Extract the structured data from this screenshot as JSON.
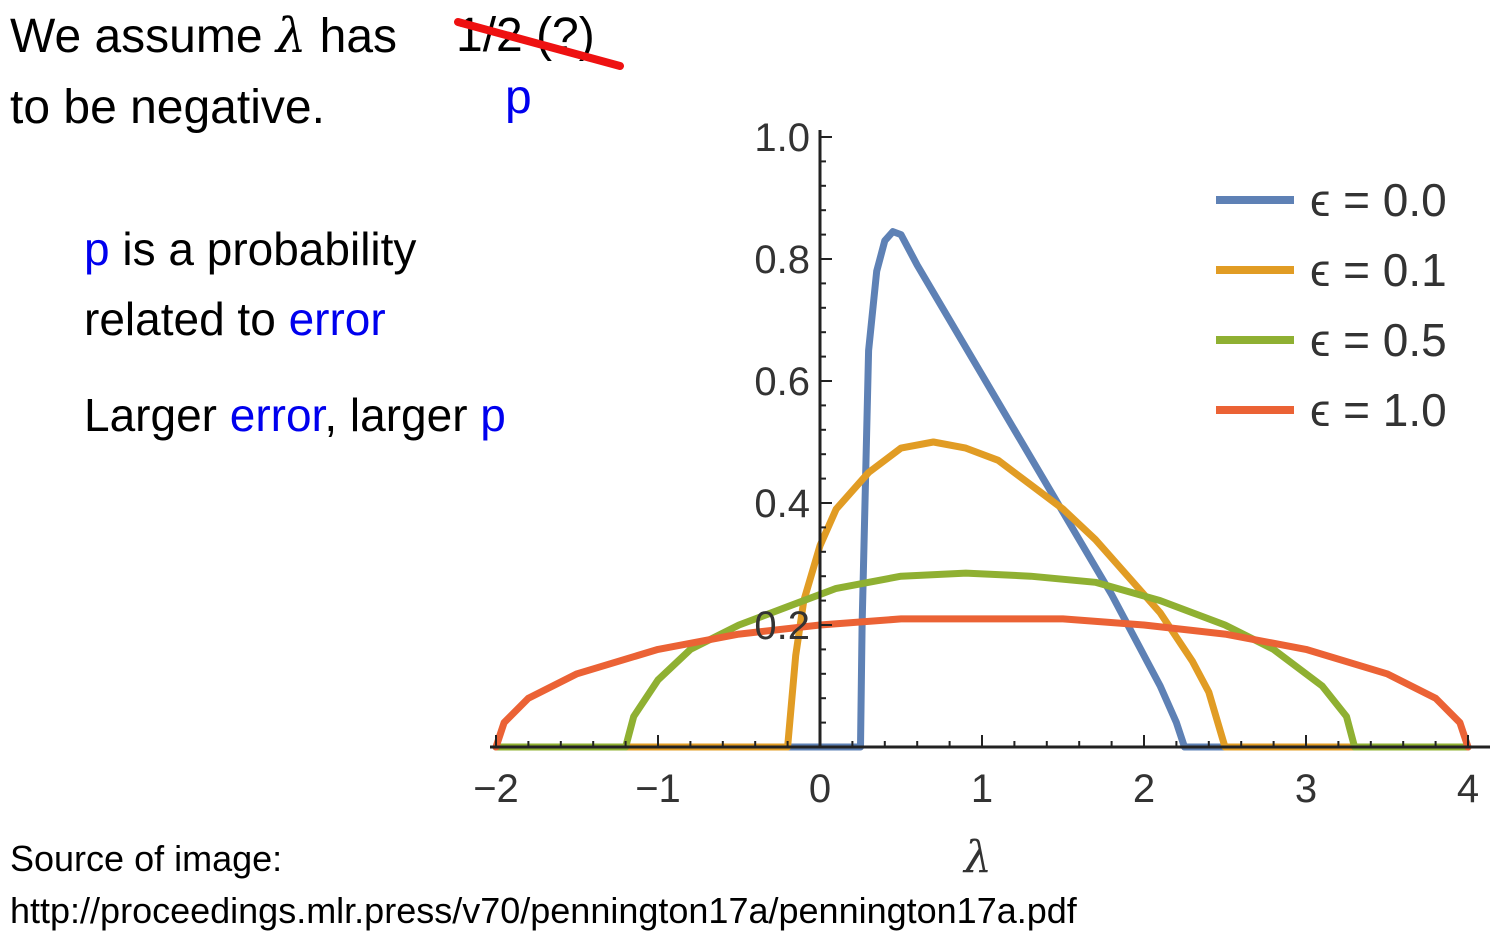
{
  "slide": {
    "line1_pre": "We assume ",
    "line1_lambda": "λ",
    "line1_post": " has ",
    "struck_text": "1/2 (?)",
    "replacement": "p",
    "line2": "to be negative.",
    "p_def_p": "p",
    "p_def_rest": " is a probability",
    "p_def_line2_pre": "related to ",
    "p_def_line2_error": "error",
    "larger_pre": "Larger ",
    "larger_error": "error",
    "larger_mid": ", larger ",
    "larger_p": "p",
    "source_label": "Source of image:",
    "source_url": "http://proceedings.mlr.press/v70/pennington17a/pennington17a.pdf"
  },
  "colors": {
    "strike": "#ee1111",
    "blue_text": "#0000ee",
    "axis": "#222222"
  },
  "chart_data": {
    "type": "line",
    "xlabel": "λ",
    "ylabel": "",
    "xlim": [
      -2,
      4
    ],
    "ylim": [
      0,
      1.0
    ],
    "x_ticks": [
      -2,
      -1,
      0,
      1,
      2,
      3,
      4
    ],
    "x_tick_labels": [
      "−2",
      "−1",
      "0",
      "1",
      "2",
      "3",
      "4"
    ],
    "y_ticks": [
      0.2,
      0.4,
      0.6,
      0.8,
      1.0
    ],
    "y_tick_labels": [
      "0.2",
      "0.4",
      "0.6",
      "0.8",
      "1.0"
    ],
    "legend_position": "top-right",
    "series": [
      {
        "name": "ϵ = 0.0",
        "color": "#5e81b5",
        "x": [
          -2,
          0.25,
          0.26,
          0.3,
          0.35,
          0.4,
          0.45,
          0.5,
          0.6,
          0.8,
          1.0,
          1.2,
          1.4,
          1.6,
          1.8,
          2.0,
          2.1,
          2.2,
          2.25,
          4
        ],
        "y": [
          0,
          0,
          0.2,
          0.65,
          0.78,
          0.83,
          0.845,
          0.84,
          0.79,
          0.7,
          0.61,
          0.52,
          0.43,
          0.34,
          0.25,
          0.15,
          0.1,
          0.04,
          0,
          0
        ]
      },
      {
        "name": "ϵ = 0.1",
        "color": "#e19c24",
        "x": [
          -2,
          -0.2,
          -0.15,
          -0.1,
          0,
          0.1,
          0.3,
          0.5,
          0.7,
          0.9,
          1.1,
          1.3,
          1.5,
          1.7,
          1.9,
          2.1,
          2.3,
          2.4,
          2.5,
          4
        ],
        "y": [
          0,
          0,
          0.15,
          0.24,
          0.33,
          0.39,
          0.45,
          0.49,
          0.5,
          0.49,
          0.47,
          0.43,
          0.39,
          0.34,
          0.28,
          0.22,
          0.14,
          0.09,
          0,
          0
        ]
      },
      {
        "name": "ϵ = 0.5",
        "color": "#8fb032",
        "x": [
          -2,
          -1.2,
          -1.15,
          -1.0,
          -0.8,
          -0.5,
          -0.2,
          0.1,
          0.5,
          0.9,
          1.3,
          1.7,
          2.1,
          2.5,
          2.8,
          3.1,
          3.25,
          3.3,
          4
        ],
        "y": [
          0,
          0,
          0.05,
          0.11,
          0.16,
          0.2,
          0.23,
          0.26,
          0.28,
          0.285,
          0.28,
          0.27,
          0.24,
          0.2,
          0.16,
          0.1,
          0.05,
          0,
          0
        ]
      },
      {
        "name": "ϵ = 1.0",
        "color": "#eb6235",
        "x": [
          -2,
          -1.95,
          -1.8,
          -1.5,
          -1.0,
          -0.5,
          0,
          0.5,
          1.0,
          1.5,
          2.0,
          2.5,
          3.0,
          3.5,
          3.8,
          3.95,
          4
        ],
        "y": [
          0,
          0.04,
          0.08,
          0.12,
          0.16,
          0.185,
          0.2,
          0.21,
          0.21,
          0.21,
          0.2,
          0.185,
          0.16,
          0.12,
          0.08,
          0.04,
          0
        ]
      }
    ]
  }
}
